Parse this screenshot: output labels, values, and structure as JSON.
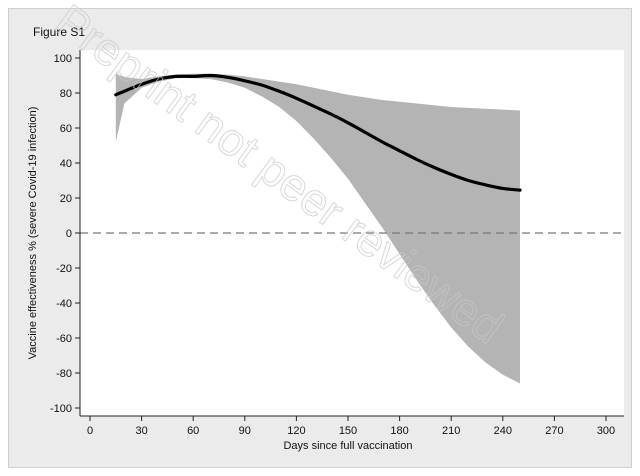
{
  "figure_label": "Figure S1",
  "watermark": "Preprint not peer reviewed",
  "colors": {
    "frame_background": "#ebebeb",
    "plot_background": "#ffffff",
    "ci_band": "#b4b4b4",
    "estimate_line": "#000000",
    "reference_line": "#777777",
    "watermark": "#c8c8c8"
  },
  "chart_data": {
    "type": "line",
    "xlabel": "Days since full vaccination",
    "ylabel": "Vaccine effectiveness % (severe Covid-19 infection)",
    "xlim": [
      0,
      300
    ],
    "ylim": [
      -100,
      100
    ],
    "xticks": [
      0,
      30,
      60,
      90,
      120,
      150,
      180,
      210,
      240,
      270,
      300
    ],
    "yticks": [
      100,
      80,
      60,
      40,
      20,
      0,
      -20,
      -40,
      -60,
      -80,
      -100
    ],
    "grid": false,
    "reference_line": {
      "y": 0,
      "style": "dashed"
    },
    "estimate": {
      "x": [
        15,
        20,
        30,
        40,
        50,
        60,
        70,
        80,
        90,
        100,
        110,
        120,
        130,
        140,
        150,
        160,
        170,
        180,
        190,
        200,
        210,
        220,
        230,
        240,
        250
      ],
      "y": [
        79,
        81,
        85,
        88,
        89.5,
        89.5,
        90,
        89,
        87,
        84.5,
        81,
        77,
        72.5,
        68,
        63,
        57.5,
        52,
        47,
        42,
        37.5,
        33.5,
        30,
        27.5,
        25.5,
        24.5
      ]
    },
    "ci_band": {
      "x": [
        15,
        20,
        30,
        40,
        50,
        60,
        70,
        80,
        90,
        100,
        110,
        120,
        130,
        140,
        150,
        160,
        170,
        180,
        190,
        200,
        210,
        220,
        230,
        240,
        250
      ],
      "upper": [
        91,
        89,
        88,
        89.5,
        90.5,
        91,
        91,
        90.5,
        89.5,
        88,
        86.5,
        85,
        83,
        81,
        79,
        77.5,
        76,
        75,
        74,
        73,
        72,
        71.5,
        71,
        70.5,
        70
      ],
      "lower": [
        52,
        74,
        83,
        86.5,
        88.5,
        88.5,
        88,
        86,
        83,
        78,
        72,
        64,
        54,
        43,
        31,
        17,
        3,
        -12,
        -27,
        -41,
        -54,
        -65,
        -74,
        -81,
        -86
      ]
    }
  }
}
